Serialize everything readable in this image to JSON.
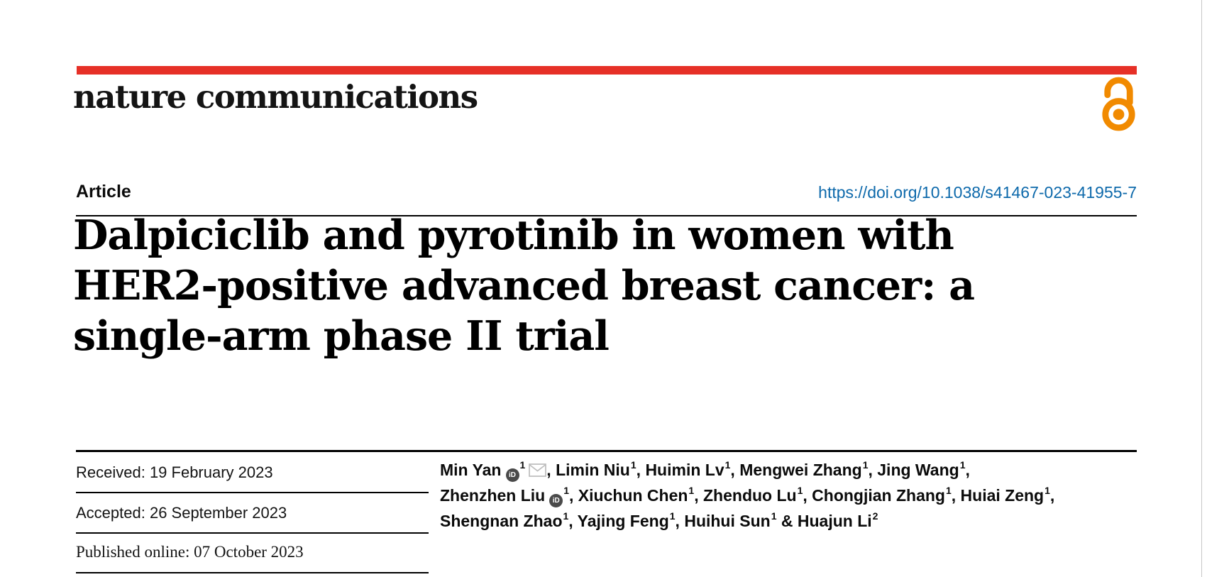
{
  "journal": {
    "name": "nature communications"
  },
  "colors": {
    "brand_red": "#e63027",
    "open_access_orange": "#f18a00",
    "link_blue": "#0d69ab"
  },
  "icons": {
    "open_access": "open-padlock",
    "orcid_text": "iD",
    "email": "envelope"
  },
  "article": {
    "type_label": "Article",
    "doi": "https://doi.org/10.1038/s41467-023-41955-7",
    "title_lines": [
      "Dalpiciclib and pyrotinib in women with",
      "HER2-positive advanced breast cancer: a",
      "single-arm phase II trial"
    ],
    "dates": [
      {
        "label": "Received",
        "value": "19 February 2023",
        "text": "Received: 19 February 2023"
      },
      {
        "label": "Accepted",
        "value": "26 September 2023",
        "text": "Accepted: 26 September 2023"
      },
      {
        "label": "Published online",
        "value": "07 October 2023",
        "text": "Published online: 07 October 2023"
      }
    ],
    "authors": [
      {
        "name": "Min Yan",
        "sup": "1",
        "orcid": true,
        "email": true,
        "sep": ", "
      },
      {
        "name": "Limin Niu",
        "sup": "1",
        "sep": ", "
      },
      {
        "name": "Huimin Lv",
        "sup": "1",
        "sep": ", "
      },
      {
        "name": "Mengwei Zhang",
        "sup": "1",
        "sep": ", "
      },
      {
        "name": "Jing Wang",
        "sup": "1",
        "sep": ",",
        "break_after": true
      },
      {
        "name": "Zhenzhen Liu",
        "sup": "1",
        "orcid": true,
        "sep": ", "
      },
      {
        "name": "Xiuchun Chen",
        "sup": "1",
        "sep": ", "
      },
      {
        "name": "Zhenduo Lu",
        "sup": "1",
        "sep": ", "
      },
      {
        "name": "Chongjian Zhang",
        "sup": "1",
        "sep": ", "
      },
      {
        "name": "Huiai Zeng",
        "sup": "1",
        "sep": ",",
        "break_after": true
      },
      {
        "name": "Shengnan Zhao",
        "sup": "1",
        "sep": ", "
      },
      {
        "name": "Yajing Feng",
        "sup": "1",
        "sep": ", "
      },
      {
        "name": "Huihui Sun",
        "sup": "1",
        "sep": " & "
      },
      {
        "name": "Huajun Li",
        "sup": "2",
        "sep": ""
      }
    ]
  }
}
